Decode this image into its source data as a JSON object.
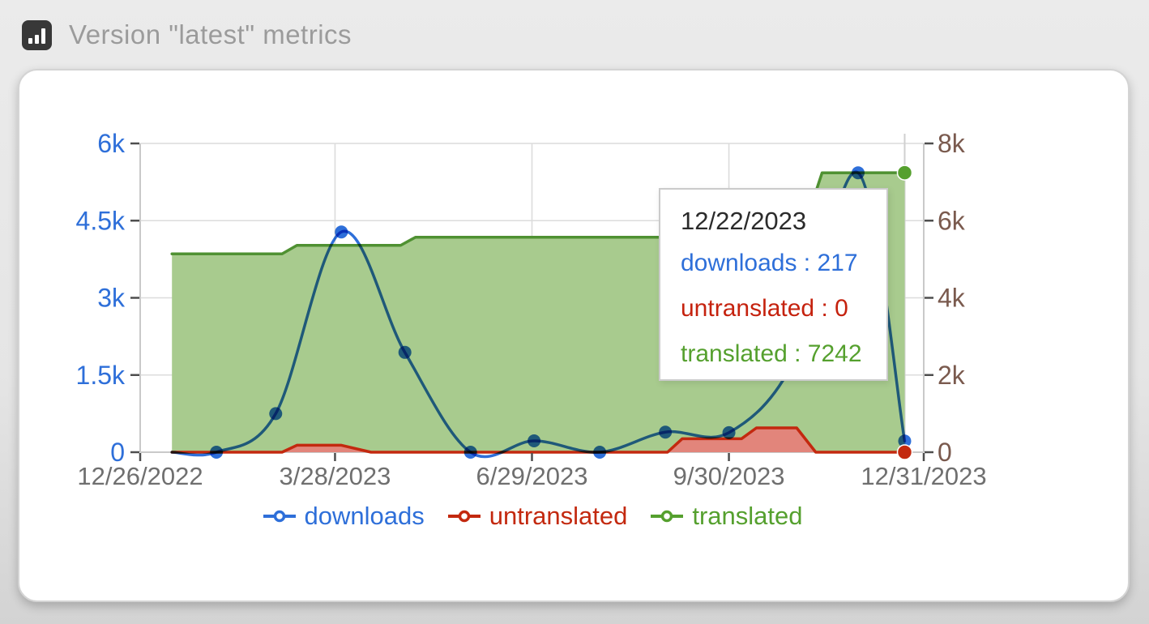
{
  "header": {
    "title": "Version \"latest\" metrics"
  },
  "legend": {
    "items": [
      {
        "label": "downloads",
        "color": "#2e6fd9"
      },
      {
        "label": "untranslated",
        "color": "#c3290f"
      },
      {
        "label": "translated",
        "color": "#55a02e"
      }
    ]
  },
  "tooltip": {
    "date": "12/22/2023",
    "separator": " : ",
    "rows": [
      {
        "label": "downloads",
        "value": "217",
        "color": "#2e6fd9"
      },
      {
        "label": "untranslated",
        "value": "0",
        "color": "#c5220e"
      },
      {
        "label": "translated",
        "value": "7242",
        "color": "#55a02e"
      }
    ]
  },
  "chart_data": {
    "type": "area",
    "title": "Version \"latest\" metrics",
    "grid": true,
    "x_axis": {
      "start_date": "12/26/2022",
      "end_date": "12/31/2023",
      "ticks": [
        "12/26/2022",
        "3/28/2023",
        "6/29/2023",
        "9/30/2023",
        "12/31/2023"
      ],
      "label_color": "#6f6f6f"
    },
    "y_axis_left": {
      "series": "downloads",
      "max": 6000,
      "ticks": [
        {
          "label": "6k",
          "value": 6000
        },
        {
          "label": "4.5k",
          "value": 4500
        },
        {
          "label": "3k",
          "value": 3000
        },
        {
          "label": "1.5k",
          "value": 1500
        },
        {
          "label": "0",
          "value": 0
        }
      ],
      "label_color": "#2e6fd9"
    },
    "y_axis_right": {
      "series": "translated, untranslated",
      "max": 8000,
      "ticks": [
        {
          "label": "8k",
          "value": 8000
        },
        {
          "label": "6k",
          "value": 6000
        },
        {
          "label": "4k",
          "value": 4000
        },
        {
          "label": "2k",
          "value": 2000
        },
        {
          "label": "0",
          "value": 0
        }
      ],
      "label_color": "#7a5a4e"
    },
    "crosshair_date": "12/22/2023",
    "series": [
      {
        "name": "translated",
        "axis": "right",
        "shape": "linear",
        "line_color": "#4f9132",
        "fill_color": "#a8cb8e",
        "end_marker": true,
        "end_marker_color": "#55a02e",
        "points": [
          {
            "d": "1/10/2023",
            "v": 5140
          },
          {
            "d": "3/3/2023",
            "v": 5140
          },
          {
            "d": "3/10/2023",
            "v": 5360
          },
          {
            "d": "4/28/2023",
            "v": 5360
          },
          {
            "d": "5/5/2023",
            "v": 5570
          },
          {
            "d": "11/3/2023",
            "v": 5570
          },
          {
            "d": "11/13/2023",
            "v": 7240
          },
          {
            "d": "12/22/2023",
            "v": 7242
          }
        ]
      },
      {
        "name": "untranslated",
        "axis": "right",
        "shape": "linear",
        "line_color": "#c3290f",
        "fill_color": "#e2857b",
        "end_marker": true,
        "end_marker_color": "#c3290f",
        "points": [
          {
            "d": "1/10/2023",
            "v": 0
          },
          {
            "d": "3/3/2023",
            "v": 0
          },
          {
            "d": "3/10/2023",
            "v": 180
          },
          {
            "d": "3/31/2023",
            "v": 180
          },
          {
            "d": "4/14/2023",
            "v": 0
          },
          {
            "d": "9/1/2023",
            "v": 0
          },
          {
            "d": "9/8/2023",
            "v": 350
          },
          {
            "d": "10/6/2023",
            "v": 350
          },
          {
            "d": "10/13/2023",
            "v": 630
          },
          {
            "d": "11/1/2023",
            "v": 630
          },
          {
            "d": "11/10/2023",
            "v": 0
          },
          {
            "d": "12/22/2023",
            "v": 0
          }
        ]
      },
      {
        "name": "downloads",
        "axis": "left",
        "shape": "spline",
        "line_color": "#2e6fd9",
        "marker_color": "#2e6fd9",
        "blend": "multiply",
        "points": [
          {
            "d": "1/10/2023",
            "v": 0,
            "m": 0
          },
          {
            "d": "1/31/2023",
            "v": 0,
            "m": 1
          },
          {
            "d": "2/28/2023",
            "v": 750,
            "m": 1
          },
          {
            "d": "3/31/2023",
            "v": 4280,
            "m": 1
          },
          {
            "d": "4/30/2023",
            "v": 1940,
            "m": 1
          },
          {
            "d": "5/31/2023",
            "v": 0,
            "m": 1
          },
          {
            "d": "6/30/2023",
            "v": 220,
            "m": 1
          },
          {
            "d": "7/31/2023",
            "v": 0,
            "m": 1
          },
          {
            "d": "8/31/2023",
            "v": 390,
            "m": 1
          },
          {
            "d": "9/30/2023",
            "v": 380,
            "m": 1
          },
          {
            "d": "10/31/2023",
            "v": 1800,
            "m": 1
          },
          {
            "d": "11/30/2023",
            "v": 5430,
            "m": 1
          },
          {
            "d": "12/22/2023",
            "v": 217,
            "m": 1
          }
        ]
      }
    ]
  }
}
